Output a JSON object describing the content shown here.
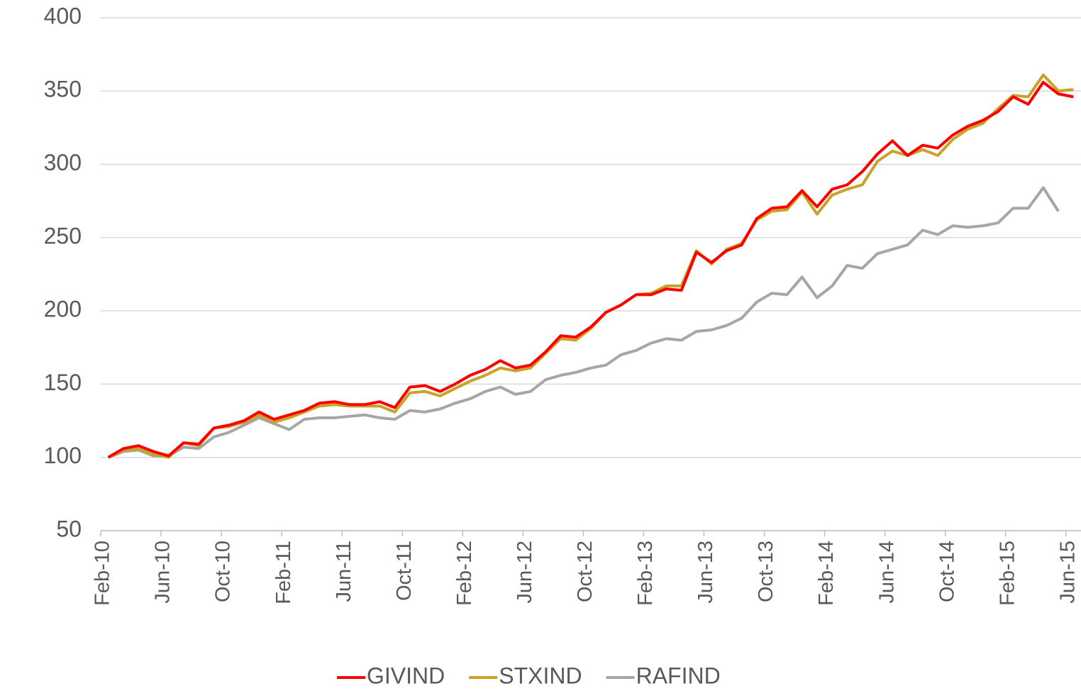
{
  "chart_data": {
    "type": "line",
    "categories": [
      "Feb-10",
      null,
      null,
      null,
      "Jun-10",
      null,
      null,
      null,
      "Oct-10",
      null,
      null,
      null,
      "Feb-11",
      null,
      null,
      null,
      "Jun-11",
      null,
      null,
      null,
      "Oct-11",
      null,
      null,
      null,
      "Feb-12",
      null,
      null,
      null,
      "Jun-12",
      null,
      null,
      null,
      "Oct-12",
      null,
      null,
      null,
      "Feb-13",
      null,
      null,
      null,
      "Jun-13",
      null,
      null,
      null,
      "Oct-13",
      null,
      null,
      null,
      "Feb-14",
      null,
      null,
      null,
      "Jun-14",
      null,
      null,
      null,
      "Oct-14",
      null,
      null,
      null,
      "Feb-15",
      null,
      null,
      null,
      "Jun-15"
    ],
    "series": [
      {
        "name": "GIVIND",
        "color": "#ff0000",
        "values": [
          100,
          106,
          108,
          104,
          101,
          110,
          109,
          120,
          122,
          125,
          131,
          126,
          129,
          132,
          137,
          138,
          136,
          136,
          138,
          134,
          148,
          149,
          145,
          150,
          156,
          160,
          166,
          161,
          163,
          172,
          183,
          182,
          189,
          199,
          204,
          211,
          211,
          215,
          214,
          240,
          233,
          241,
          245,
          263,
          270,
          271,
          282,
          271,
          283,
          286,
          295,
          307,
          316,
          306,
          313,
          311,
          320,
          326,
          330,
          336,
          346,
          341,
          356,
          348,
          346
        ]
      },
      {
        "name": "STXIND",
        "color": "#c9a227",
        "values": [
          100,
          105,
          106,
          102,
          100,
          110,
          108,
          120,
          121,
          124,
          129,
          124,
          127,
          131,
          135,
          136,
          135,
          135,
          135,
          131,
          144,
          145,
          142,
          147,
          152,
          156,
          161,
          159,
          161,
          171,
          181,
          180,
          188,
          199,
          204,
          211,
          212,
          217,
          217,
          241,
          232,
          242,
          246,
          262,
          268,
          269,
          281,
          266,
          279,
          283,
          286,
          302,
          309,
          306,
          310,
          306,
          317,
          324,
          328,
          338,
          347,
          346,
          361,
          350,
          351
        ]
      },
      {
        "name": "RAFIND",
        "color": "#a6a6a6",
        "values": [
          100,
          104,
          105,
          101,
          101,
          107,
          106,
          114,
          117,
          122,
          127,
          123,
          119,
          126,
          127,
          127,
          128,
          129,
          127,
          126,
          132,
          131,
          133,
          137,
          140,
          145,
          148,
          143,
          145,
          153,
          156,
          158,
          161,
          163,
          170,
          173,
          178,
          181,
          180,
          186,
          187,
          190,
          195,
          206,
          212,
          211,
          223,
          209,
          217,
          231,
          229,
          239,
          242,
          245,
          255,
          252,
          258,
          257,
          258,
          260,
          270,
          270,
          284,
          268,
          null
        ]
      }
    ],
    "ylim": [
      50,
      400
    ],
    "yticks": [
      50,
      100,
      150,
      200,
      250,
      300,
      350,
      400
    ],
    "grid": true,
    "legend": "bottom"
  }
}
